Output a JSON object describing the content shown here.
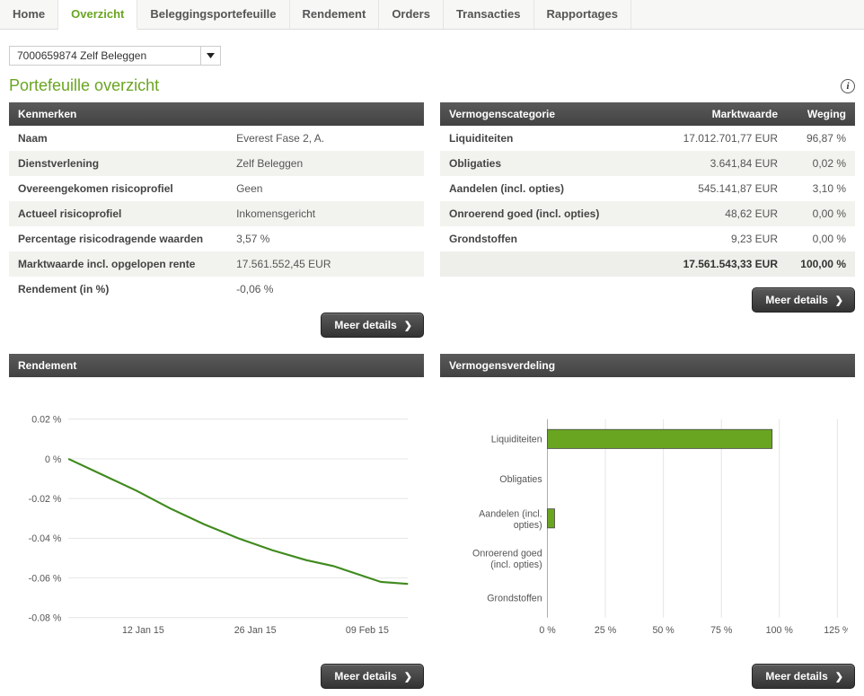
{
  "nav": {
    "tabs": [
      "Home",
      "Overzicht",
      "Beleggingsportefeuille",
      "Rendement",
      "Orders",
      "Transacties",
      "Rapportages"
    ],
    "active_index": 1
  },
  "account_selector": {
    "value": "7000659874 Zelf Beleggen"
  },
  "page_title": "Portefeuille overzicht",
  "colors": {
    "accent": "#6aa521",
    "header_bg_top": "#5a5a5a",
    "header_bg_bottom": "#424242",
    "row_alt": "#f2f2ee",
    "grid": "#e4e4e4",
    "axis": "#aaaaaa",
    "bar_fill": "#6aa521",
    "line_color": "#3f8a1d"
  },
  "buttons": {
    "more_details": "Meer details"
  },
  "sections": {
    "characteristics": {
      "title": "Kenmerken",
      "rows": [
        {
          "k": "Naam",
          "v": "Everest Fase 2, A."
        },
        {
          "k": "Dienstverlening",
          "v": "Zelf Beleggen"
        },
        {
          "k": "Overeengekomen risicoprofiel",
          "v": "Geen"
        },
        {
          "k": "Actueel risicoprofiel",
          "v": "Inkomensgericht"
        },
        {
          "k": "Percentage risicodragende waarden",
          "v": "3,57 %"
        },
        {
          "k": "Marktwaarde incl. opgelopen rente",
          "v": "17.561.552,45 EUR"
        },
        {
          "k": "Rendement (in %)",
          "v": "-0,06 %"
        }
      ]
    },
    "asset_category": {
      "title": "Vermogenscategorie",
      "col_marktwaarde": "Marktwaarde",
      "col_weging": "Weging",
      "rows": [
        {
          "cat": "Liquiditeiten",
          "mw": "17.012.701,77 EUR",
          "wg": "96,87 %"
        },
        {
          "cat": "Obligaties",
          "mw": "3.641,84 EUR",
          "wg": "0,02 %"
        },
        {
          "cat": "Aandelen (incl. opties)",
          "mw": "545.141,87 EUR",
          "wg": "3,10 %"
        },
        {
          "cat": "Onroerend goed (incl. opties)",
          "mw": "48,62 EUR",
          "wg": "0,00 %"
        },
        {
          "cat": "Grondstoffen",
          "mw": "9,23 EUR",
          "wg": "0,00 %"
        }
      ],
      "total": {
        "mw": "17.561.543,33 EUR",
        "wg": "100,00 %"
      }
    },
    "rendement_chart": {
      "title": "Rendement",
      "type": "line",
      "y_ticks": [
        0.02,
        0,
        -0.02,
        -0.04,
        -0.06,
        -0.08
      ],
      "y_tick_labels": [
        "0.02 %",
        "0 %",
        "-0.02 %",
        "-0.04 %",
        "-0.06 %",
        "-0.08 %"
      ],
      "ylim": [
        -0.08,
        0.02
      ],
      "x_tick_labels": [
        "12 Jan 15",
        "26 Jan 15",
        "09 Feb 15"
      ],
      "x_tick_positions": [
        0.22,
        0.55,
        0.88
      ],
      "points": [
        {
          "x": 0.0,
          "y": 0.0
        },
        {
          "x": 0.1,
          "y": -0.008
        },
        {
          "x": 0.2,
          "y": -0.016
        },
        {
          "x": 0.3,
          "y": -0.025
        },
        {
          "x": 0.4,
          "y": -0.033
        },
        {
          "x": 0.5,
          "y": -0.04
        },
        {
          "x": 0.6,
          "y": -0.046
        },
        {
          "x": 0.7,
          "y": -0.051
        },
        {
          "x": 0.78,
          "y": -0.054
        },
        {
          "x": 0.85,
          "y": -0.058
        },
        {
          "x": 0.92,
          "y": -0.062
        },
        {
          "x": 1.0,
          "y": -0.063
        }
      ],
      "line_color": "#3f8a1d",
      "grid_color": "#e4e4e4",
      "label_fontsize": 11
    },
    "allocation_chart": {
      "title": "Vermogensverdeling",
      "type": "bar-horizontal",
      "x_ticks": [
        0,
        25,
        50,
        75,
        100,
        125
      ],
      "x_tick_labels": [
        "0 %",
        "25 %",
        "50 %",
        "75 %",
        "100 %",
        "125 %"
      ],
      "xlim": [
        0,
        125
      ],
      "categories": [
        "Liquiditeiten",
        "Obligaties",
        "Aandelen (incl. opties)",
        "Onroerend goed (incl. opties)",
        "Grondstoffen"
      ],
      "values": [
        96.87,
        0.02,
        3.1,
        0.0,
        0.0
      ],
      "bar_color": "#6aa521",
      "bar_border": "#444444",
      "grid_color": "#e4e4e4",
      "label_fontsize": 11
    }
  }
}
